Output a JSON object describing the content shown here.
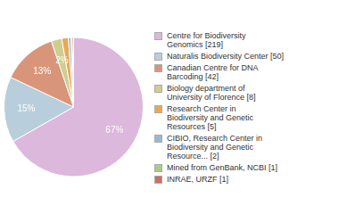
{
  "chart_data": {
    "type": "pie",
    "categories": [
      "Centre for Biodiversity\nGenomics [219]",
      "Naturalis Biodiversity Center [50]",
      "Canadian Centre for DNA\nBarcoding [42]",
      "Biology department of\nUniversity of Florence [8]",
      "Research Center in\nBiodiversity and Genetic\nResources [5]",
      "CIBIO, Research Center in\nBiodiversity and Genetic\nResource... [2]",
      "Mined from GenBank, NCBI [1]",
      "INRAE, URZF [1]"
    ],
    "values": [
      66.77,
      15.24,
      12.8,
      2.44,
      1.52,
      0.61,
      0.3,
      0.3
    ],
    "value_labels": [
      "67%",
      "15%",
      "13%",
      "2%",
      null,
      null,
      null,
      null
    ],
    "colors": [
      "#dcb8dc",
      "#b8cedd",
      "#d9957a",
      "#cece90",
      "#e8a855",
      "#9db8cc",
      "#a8cc88",
      "#cc7060"
    ],
    "data_labels": true,
    "legend": "right"
  }
}
